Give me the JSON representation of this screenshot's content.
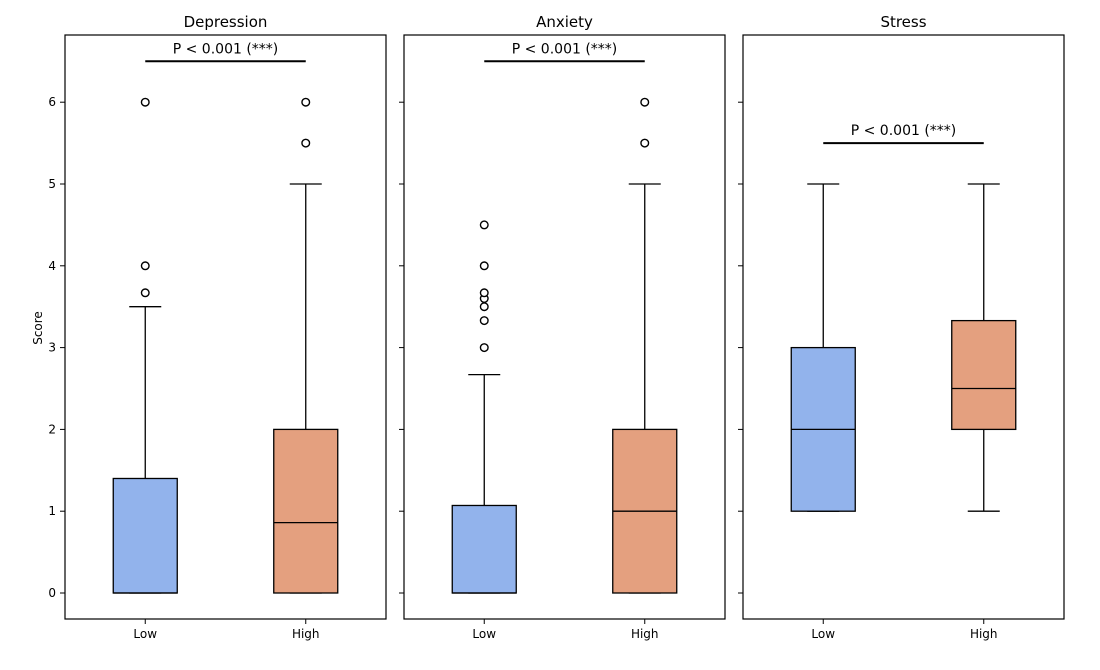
{
  "chart_data": {
    "type": "box",
    "ylabel": "Score",
    "ylim": [
      -0.32,
      6.85
    ],
    "y_ticks": [
      0,
      1,
      2,
      3,
      4,
      5,
      6
    ],
    "categories": [
      "Low",
      "High"
    ],
    "grid": false,
    "colors": {
      "Low": "#92b3ec",
      "High": "#e4a07f"
    },
    "panels": [
      {
        "title": "Depression",
        "boxes": [
          {
            "category": "Low",
            "min": 0,
            "q1": 0,
            "median": 0,
            "q3": 1.4,
            "max": 3.5,
            "outliers": [
              3.67,
              4.0,
              6.0
            ]
          },
          {
            "category": "High",
            "min": 0,
            "q1": 0,
            "median": 0.86,
            "q3": 2.0,
            "max": 5.0,
            "outliers": [
              5.5,
              6.0
            ]
          }
        ],
        "significance": {
          "text": "P < 0.001 (***)",
          "y": 6.5
        }
      },
      {
        "title": "Anxiety",
        "boxes": [
          {
            "category": "Low",
            "min": 0,
            "q1": 0,
            "median": 0,
            "q3": 1.07,
            "max": 2.67,
            "outliers": [
              3.0,
              3.33,
              3.5,
              3.6,
              3.67,
              4.0,
              4.5
            ]
          },
          {
            "category": "High",
            "min": 0,
            "q1": 0,
            "median": 1.0,
            "q3": 2.0,
            "max": 5.0,
            "outliers": [
              5.5,
              6.0
            ]
          }
        ],
        "significance": {
          "text": "P < 0.001 (***)",
          "y": 6.5
        }
      },
      {
        "title": "Stress",
        "boxes": [
          {
            "category": "Low",
            "min": 1.0,
            "q1": 1.0,
            "median": 2.0,
            "q3": 3.0,
            "max": 5.0,
            "outliers": []
          },
          {
            "category": "High",
            "min": 1.0,
            "q1": 2.0,
            "median": 2.5,
            "q3": 3.33,
            "max": 5.0,
            "outliers": []
          }
        ],
        "significance": {
          "text": "P < 0.001 (***)",
          "y": 5.5
        }
      }
    ]
  }
}
